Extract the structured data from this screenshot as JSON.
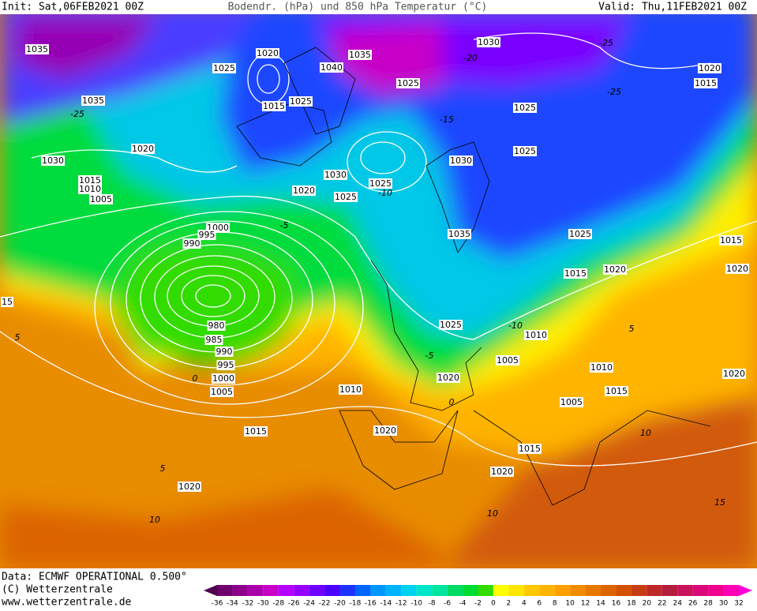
{
  "header": {
    "init": "Init: Sat,06FEB2021 00Z",
    "title": "Bodendr. (hPa) und 850 hPa Temperatur (°C)",
    "valid": "Valid: Thu,11FEB2021 00Z"
  },
  "isobar_labels": [
    1035,
    1025,
    1035,
    1020,
    1030,
    1015,
    1010,
    1005,
    1020,
    1015,
    1025,
    1035,
    1040,
    1025,
    1030,
    1025,
    1025,
    1030,
    1020,
    1025,
    1025,
    1030,
    1035,
    1025,
    1000,
    995,
    990,
    1015,
    1020,
    1025,
    1010,
    1005,
    1020,
    1010,
    1015,
    1005,
    1020,
    1010,
    1015,
    1015,
    1020,
    1020,
    980,
    985,
    990,
    995,
    1000,
    1005,
    1020,
    1015,
    1015,
    1020,
    1020,
    15
  ],
  "temperature_labels": [
    -25,
    -20,
    -25,
    -25,
    -15,
    -10,
    -5,
    0,
    5,
    5,
    10,
    10,
    15,
    10,
    5,
    0,
    -5,
    -10
  ],
  "footer": {
    "data": "Data: ECMWF OPERATIONAL 0.500°",
    "copyright": "(C) Wetterzentrale",
    "url": "www.wetterzentrale.de"
  },
  "color_scale": {
    "values": [
      -36,
      -34,
      -32,
      -30,
      -28,
      -26,
      -24,
      -22,
      -20,
      -18,
      -16,
      -14,
      -12,
      -10,
      -8,
      -6,
      -4,
      -2,
      0,
      2,
      4,
      6,
      8,
      10,
      12,
      14,
      16,
      18,
      20,
      22,
      24,
      26,
      28,
      30,
      32
    ],
    "colors": [
      "#500050",
      "#6e006e",
      "#8c008c",
      "#aa00aa",
      "#c800c8",
      "#b400ff",
      "#9600ff",
      "#6e00ff",
      "#4b00ff",
      "#1e32ff",
      "#0064ff",
      "#0096ff",
      "#00b4ff",
      "#00d2f0",
      "#00e6c8",
      "#00e6a0",
      "#00dc64",
      "#00dc32",
      "#32dc00",
      "#ffff00",
      "#ffe600",
      "#ffc800",
      "#ffb400",
      "#ffa000",
      "#f08c00",
      "#e67800",
      "#dc6400",
      "#d25000",
      "#c83c14",
      "#be2828",
      "#b41e3c",
      "#c8145a",
      "#dc0a78",
      "#f0008c",
      "#ff00b4",
      "#ff00dc"
    ]
  }
}
